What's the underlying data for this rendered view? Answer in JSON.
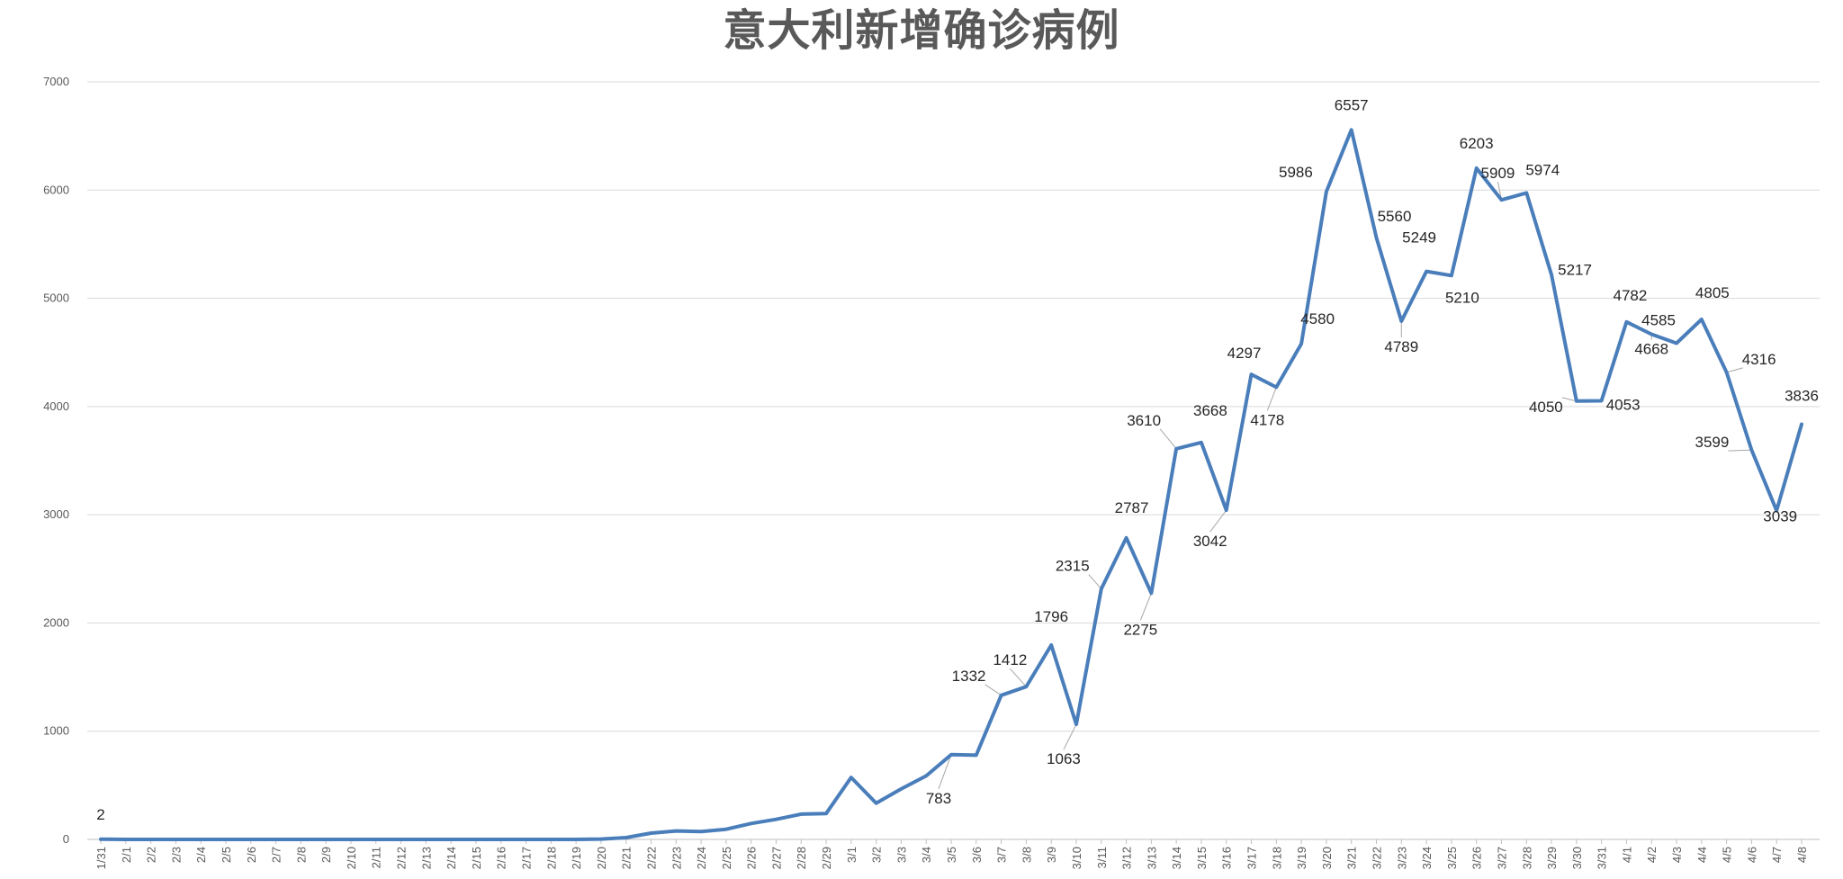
{
  "chart_data": {
    "type": "line",
    "title": "意大利新增确诊病例",
    "xlabel": "",
    "ylabel": "",
    "ylim": [
      0,
      7000
    ],
    "yticks": [
      0,
      1000,
      2000,
      3000,
      4000,
      5000,
      6000,
      7000
    ],
    "grid": true,
    "legend": "none",
    "line_color": "#4a7ebb",
    "x": [
      "1/31",
      "2/1",
      "2/2",
      "2/3",
      "2/4",
      "2/5",
      "2/6",
      "2/7",
      "2/8",
      "2/9",
      "2/10",
      "2/11",
      "2/12",
      "2/13",
      "2/14",
      "2/15",
      "2/16",
      "2/17",
      "2/18",
      "2/19",
      "2/20",
      "2/21",
      "2/22",
      "2/23",
      "2/24",
      "2/25",
      "2/26",
      "2/27",
      "2/28",
      "2/29",
      "3/1",
      "3/2",
      "3/3",
      "3/4",
      "3/5",
      "3/6",
      "3/7",
      "3/8",
      "3/9",
      "3/10",
      "3/11",
      "3/12",
      "3/13",
      "3/14",
      "3/15",
      "3/16",
      "3/17",
      "3/18",
      "3/19",
      "3/20",
      "3/21",
      "3/22",
      "3/23",
      "3/24",
      "3/25",
      "3/26",
      "3/27",
      "3/28",
      "3/29",
      "3/30",
      "3/31",
      "4/1",
      "4/2",
      "4/3",
      "4/4",
      "4/5",
      "4/6",
      "4/7",
      "4/8"
    ],
    "series": [
      {
        "values": [
          2,
          0,
          0,
          0,
          0,
          0,
          0,
          0,
          0,
          0,
          0,
          0,
          0,
          0,
          0,
          0,
          0,
          0,
          0,
          0,
          3,
          17,
          58,
          78,
          72,
          94,
          147,
          185,
          234,
          239,
          573,
          335,
          466,
          587,
          783,
          778,
          1332,
          1412,
          1796,
          1063,
          2315,
          2787,
          2275,
          3610,
          3668,
          3042,
          4297,
          4178,
          4580,
          5986,
          6557,
          5560,
          4789,
          5249,
          5210,
          6203,
          5909,
          5974,
          5217,
          4050,
          4053,
          4782,
          4668,
          4585,
          4805,
          4316,
          3599,
          3039,
          3836
        ],
        "data_labels": [
          {
            "index": 0,
            "text": "2"
          },
          {
            "index": 34,
            "text": "783"
          },
          {
            "index": 36,
            "text": "1332"
          },
          {
            "index": 37,
            "text": "1412"
          },
          {
            "index": 38,
            "text": "1796"
          },
          {
            "index": 39,
            "text": "1063"
          },
          {
            "index": 40,
            "text": "2315"
          },
          {
            "index": 41,
            "text": "2787"
          },
          {
            "index": 42,
            "text": "2275"
          },
          {
            "index": 43,
            "text": "3610"
          },
          {
            "index": 44,
            "text": "3668"
          },
          {
            "index": 45,
            "text": "3042"
          },
          {
            "index": 46,
            "text": "4297"
          },
          {
            "index": 47,
            "text": "4178"
          },
          {
            "index": 48,
            "text": "4580"
          },
          {
            "index": 49,
            "text": "5986"
          },
          {
            "index": 50,
            "text": "6557"
          },
          {
            "index": 51,
            "text": "5560"
          },
          {
            "index": 52,
            "text": "4789"
          },
          {
            "index": 53,
            "text": "5249"
          },
          {
            "index": 54,
            "text": "5210"
          },
          {
            "index": 55,
            "text": "6203"
          },
          {
            "index": 56,
            "text": "5909"
          },
          {
            "index": 57,
            "text": "5974"
          },
          {
            "index": 58,
            "text": "5217"
          },
          {
            "index": 59,
            "text": "4050"
          },
          {
            "index": 60,
            "text": "4053"
          },
          {
            "index": 61,
            "text": "4782"
          },
          {
            "index": 62,
            "text": "4668"
          },
          {
            "index": 63,
            "text": "4585"
          },
          {
            "index": 64,
            "text": "4805"
          },
          {
            "index": 65,
            "text": "4316"
          },
          {
            "index": 66,
            "text": "3599"
          },
          {
            "index": 67,
            "text": "3039"
          },
          {
            "index": 68,
            "text": "3836"
          }
        ]
      }
    ]
  }
}
